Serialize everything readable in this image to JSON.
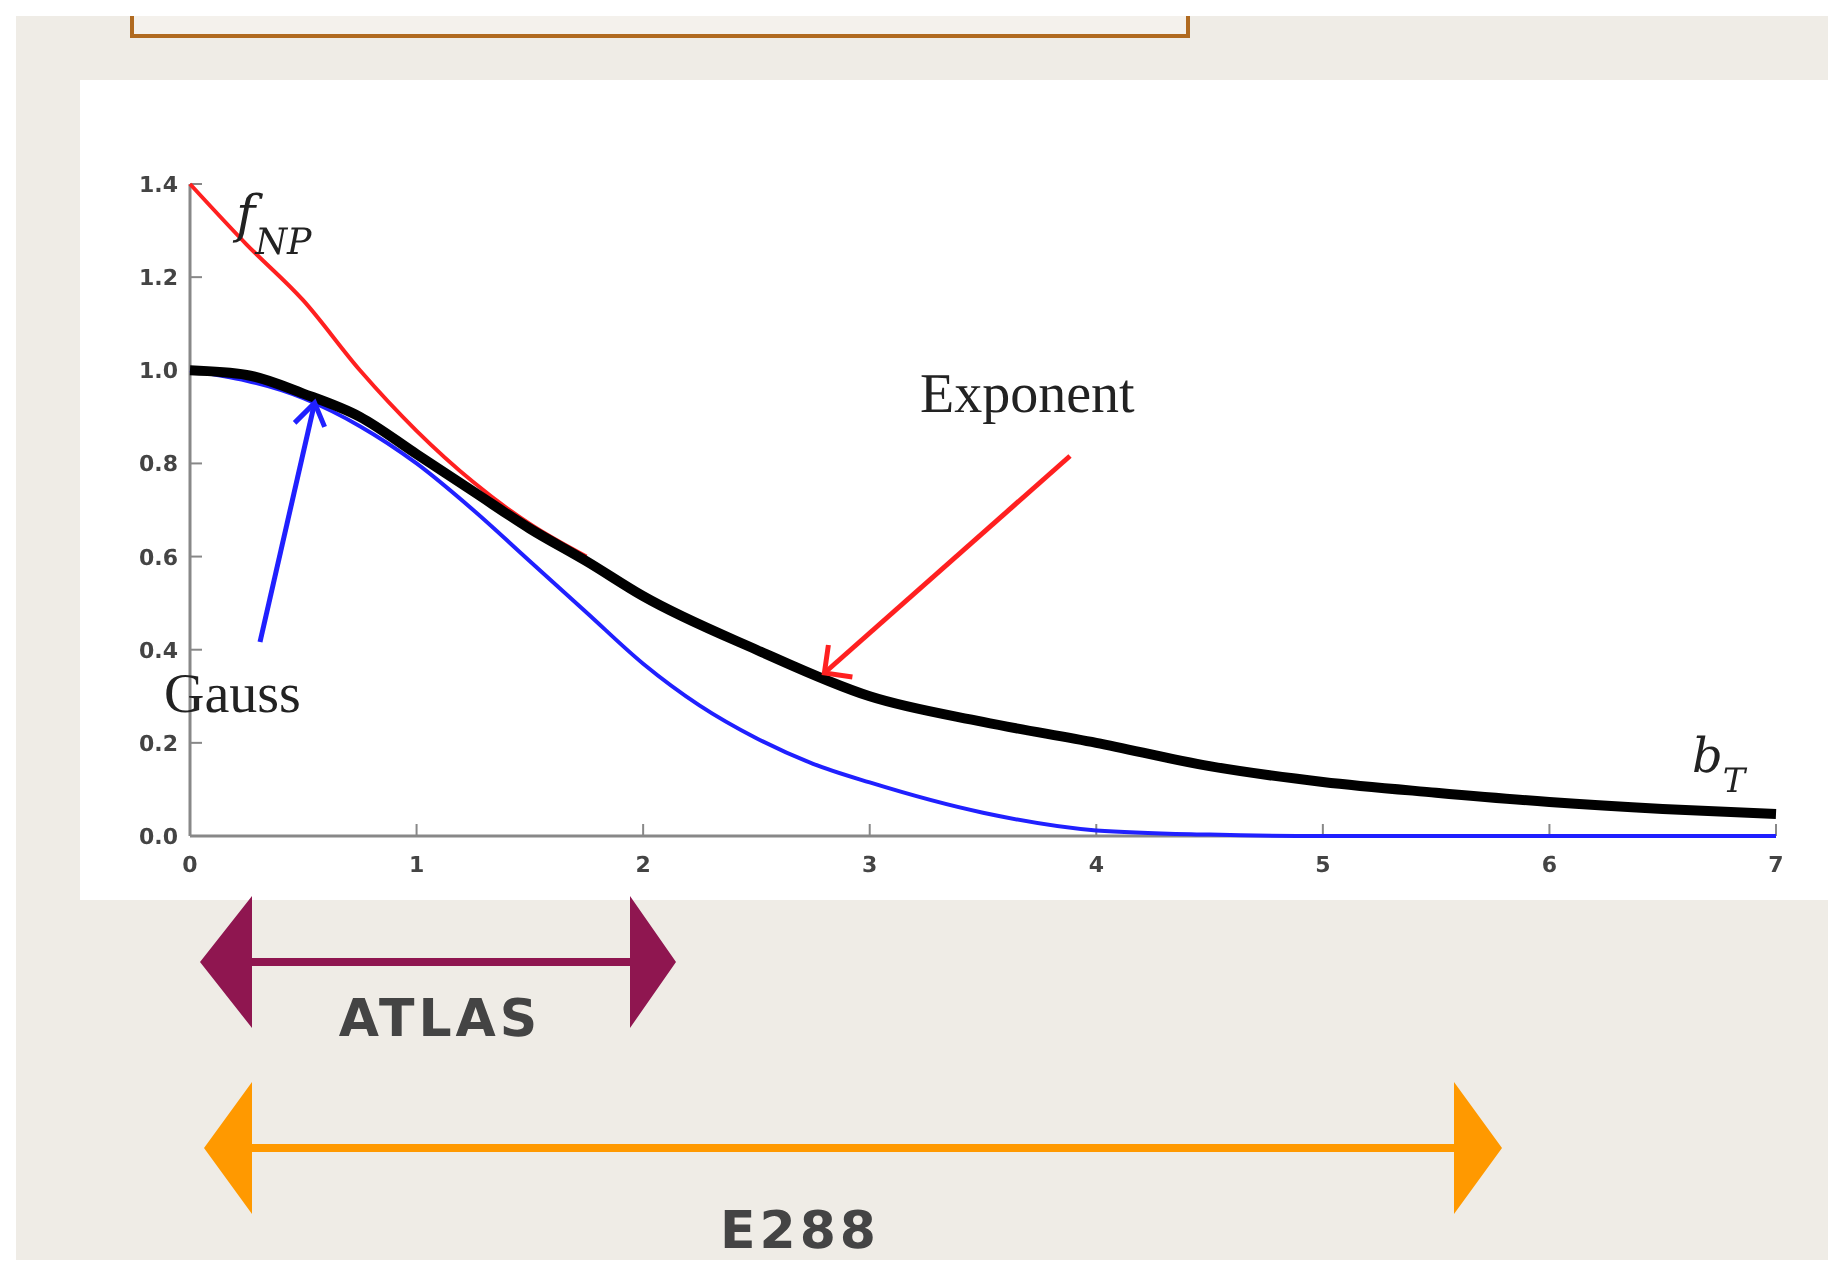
{
  "chart_data": {
    "type": "line",
    "xlabel": "b$_{T}$",
    "ylabel": "f$_{NP}$",
    "xlim": [
      0,
      7
    ],
    "xticks": [
      0,
      1,
      2,
      3,
      4,
      5,
      6,
      7
    ],
    "ylim": [
      0,
      1.4
    ],
    "yticks": [
      {
        "value": 0,
        "label": "0.0"
      },
      {
        "value": 0.2,
        "label": "0.2"
      },
      {
        "value": 0.4,
        "label": "0.4"
      },
      {
        "value": 0.6,
        "label": "0.6"
      },
      {
        "value": 0.8,
        "label": "0.8"
      },
      {
        "value": 1,
        "label": "1.0"
      },
      {
        "value": 1.2,
        "label": "1.2"
      },
      {
        "value": 1.4,
        "label": "1.4"
      }
    ],
    "grid": false,
    "marker": "none",
    "line_style": "solid",
    "series": [
      {
        "color": "#ff2020",
        "x": [
          0,
          0.25,
          0.5,
          0.75,
          1,
          1.25,
          1.5,
          1.75
        ],
        "values": [
          1.4,
          1.27,
          1.15,
          1.0,
          0.87,
          0.76,
          0.67,
          0.6
        ]
      },
      {
        "color": "#2020ff",
        "x": [
          0,
          0.25,
          0.5,
          0.75,
          1,
          1.25,
          1.5,
          1.75,
          2,
          2.25,
          2.5,
          2.75,
          3,
          3.5,
          4,
          4.5,
          5,
          6,
          7
        ],
        "values": [
          1.0,
          null,
          0.94,
          0.88,
          0.8,
          0.7,
          0.59,
          0.48,
          0.37,
          0.28,
          0.21,
          0.155,
          0.115,
          0.05,
          0.012,
          0.003,
          0,
          0,
          0
        ]
      },
      {
        "color": "#000000",
        "x": [
          0,
          0.25,
          0.5,
          0.75,
          1,
          1.25,
          1.5,
          1.75,
          2,
          2.5,
          3,
          3.5,
          4,
          4.5,
          5,
          5.5,
          6,
          6.5,
          7
        ],
        "values": [
          1.0,
          0.99,
          0.95,
          0.9,
          0.82,
          0.74,
          0.66,
          0.59,
          0.515,
          0.4,
          0.3,
          0.245,
          0.2,
          0.15,
          0.116,
          0.093,
          0.073,
          0.058,
          0.047
        ]
      }
    ],
    "annotations": [
      {
        "text": "Exponent",
        "x": 2.8,
        "y": 0.35
      },
      {
        "text": "Gauss",
        "x": 0.55,
        "y": 0.93
      },
      "ATLAS",
      "E288"
    ]
  }
}
